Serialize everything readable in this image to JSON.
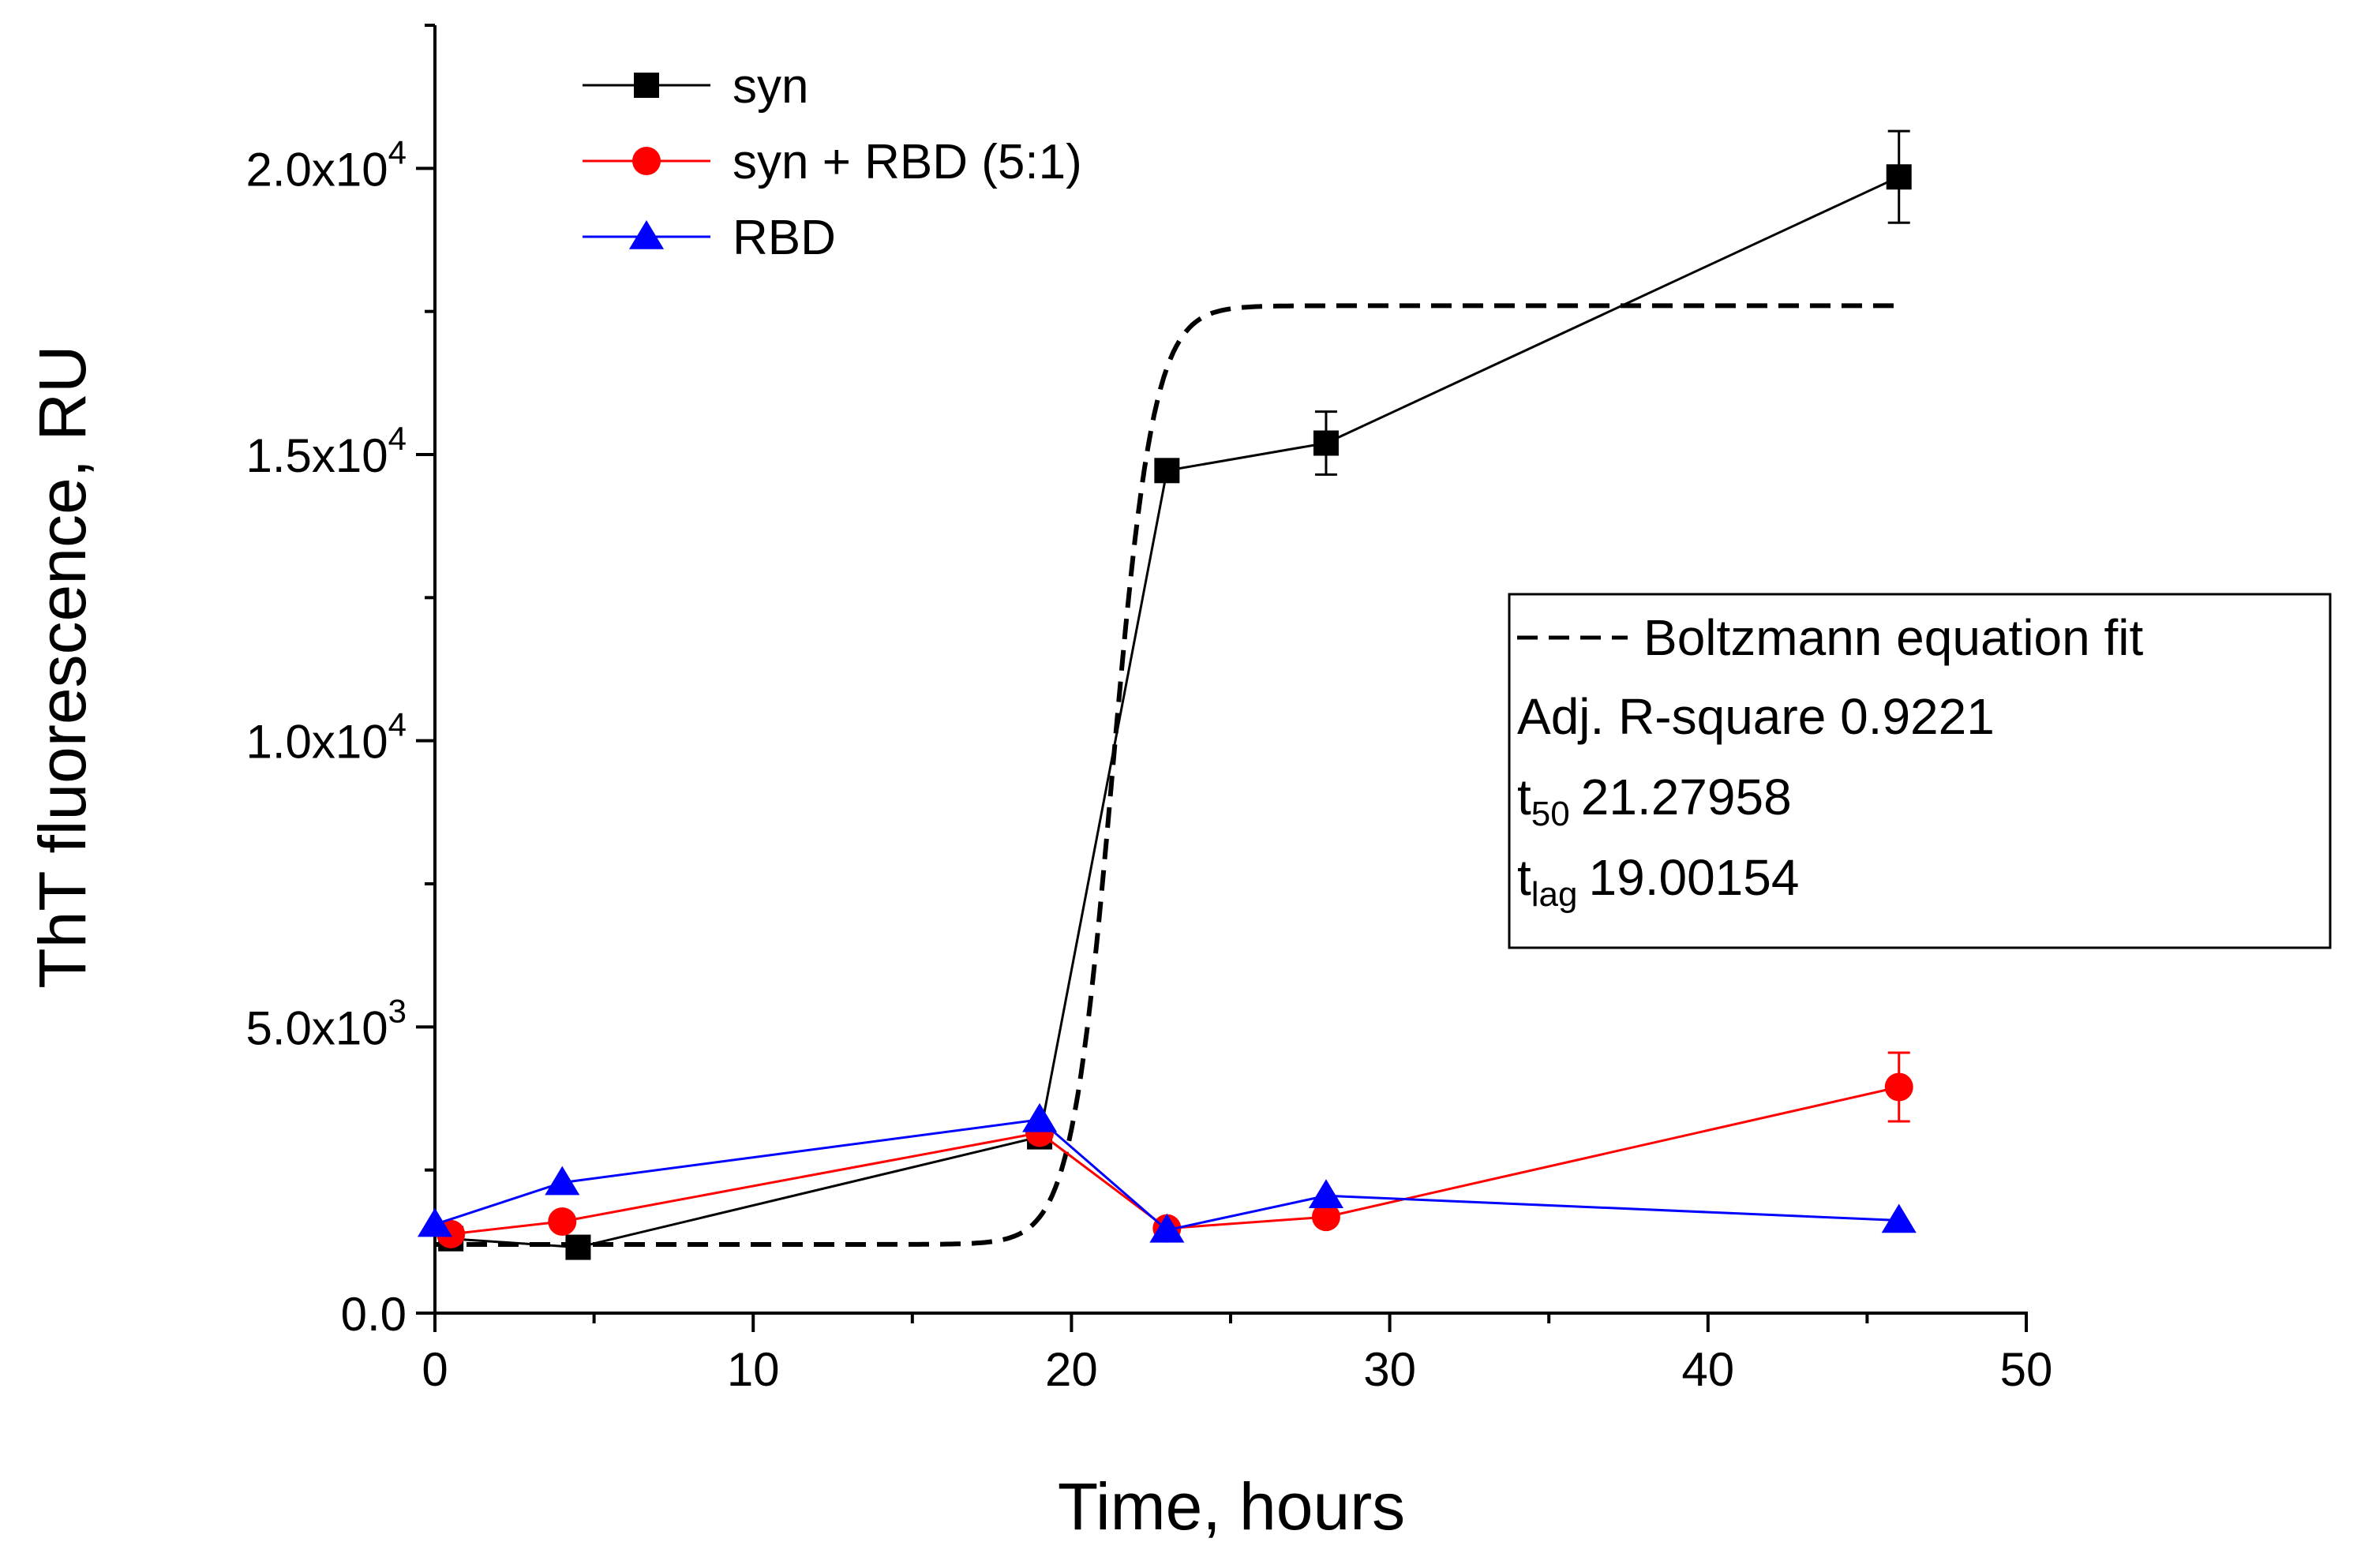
{
  "chart_data": {
    "type": "line",
    "xlabel": "Time, hours",
    "ylabel": "ThT fluorescence, RU",
    "xlim": [
      0,
      50
    ],
    "ylim": [
      0,
      22500
    ],
    "xticks": [
      0,
      10,
      20,
      30,
      40,
      50
    ],
    "xtick_labels": [
      "0",
      "10",
      "20",
      "30",
      "40",
      "50"
    ],
    "yticks": [
      0,
      5000,
      10000,
      15000,
      20000
    ],
    "ytick_labels": [
      {
        "base": "0.0",
        "exp": ""
      },
      {
        "base": "5.0x10",
        "exp": "3"
      },
      {
        "base": "1.0x10",
        "exp": "4"
      },
      {
        "base": "1.5x10",
        "exp": "4"
      },
      {
        "base": "2.0x10",
        "exp": "4"
      }
    ],
    "grid": false,
    "legend_position": "top-left",
    "series": [
      {
        "name": "syn",
        "color": "#000000",
        "marker": "square",
        "x": [
          0.5,
          4.5,
          19,
          23,
          28,
          46
        ],
        "y": [
          1300,
          1150,
          3080,
          14720,
          15200,
          19850
        ],
        "yerr": [
          0,
          0,
          0,
          0,
          550,
          800
        ]
      },
      {
        "name": "syn + RBD (5:1)",
        "color": "#ff0000",
        "marker": "circle",
        "x": [
          0.5,
          4,
          19,
          23,
          28,
          46
        ],
        "y": [
          1380,
          1600,
          3150,
          1480,
          1680,
          3950
        ],
        "yerr": [
          0,
          0,
          0,
          0,
          0,
          600
        ]
      },
      {
        "name": "RBD",
        "color": "#0000ff",
        "marker": "triangle",
        "x": [
          0,
          4,
          19,
          23,
          28,
          46
        ],
        "y": [
          1550,
          2280,
          3380,
          1450,
          2050,
          1620
        ],
        "yerr": [
          0,
          0,
          0,
          0,
          0,
          0
        ]
      }
    ],
    "fit": {
      "name": "Boltzmann equation fit",
      "color": "#000000",
      "style": "dashed",
      "x_start": 0,
      "x_end": 46,
      "A1": 1200,
      "A2": 17600,
      "x0": 21.27958,
      "dx": 0.65
    },
    "annotation": {
      "title": "Boltzmann equation fit",
      "r_square_label": "Adj. R-square 0.9221",
      "t50_main": "t",
      "t50_sub": "50",
      "t50_value": "21.27958",
      "tlag_main": "t",
      "tlag_sub": "lag",
      "tlag_value": "19.00154"
    }
  }
}
